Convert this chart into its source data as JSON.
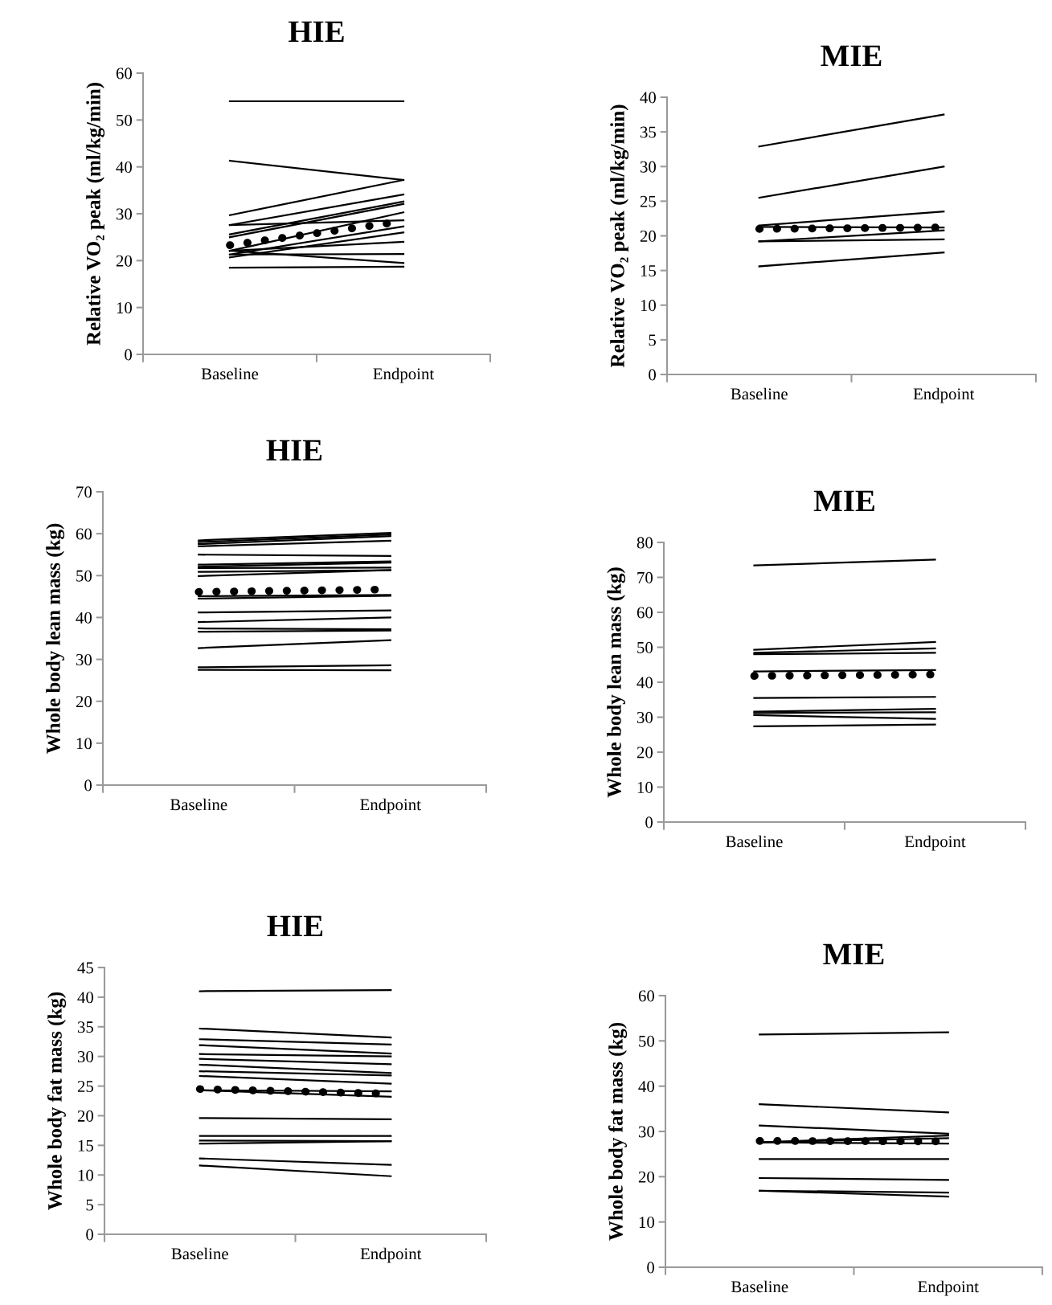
{
  "chart_data": [
    {
      "type": "line",
      "title": "HIE",
      "ylabel": "Relative VO₂ peak (ml/kg/min)",
      "categories": [
        "Baseline",
        "Endpoint"
      ],
      "ylim": [
        0,
        60
      ],
      "yticks": [
        0,
        10,
        20,
        30,
        40,
        50,
        60
      ],
      "series": [
        {
          "color": "#000000",
          "values": [
            54.0,
            54.0
          ]
        },
        {
          "color": "#000000",
          "values": [
            41.3,
            37.2
          ]
        },
        {
          "color": "#000000",
          "values": [
            29.7,
            37.2
          ]
        },
        {
          "color": "#000000",
          "values": [
            27.6,
            34.1
          ]
        },
        {
          "color": "#000000",
          "values": [
            27.6,
            28.6
          ]
        },
        {
          "color": "#000000",
          "values": [
            25.6,
            32.6
          ]
        },
        {
          "color": "#000000",
          "values": [
            25.0,
            32.1
          ]
        },
        {
          "color": "#000000",
          "values": [
            22.1,
            30.3
          ]
        },
        {
          "color": "#000000",
          "values": [
            21.3,
            27.3
          ]
        },
        {
          "color": "#000000",
          "values": [
            20.7,
            26.0
          ]
        },
        {
          "color": "#000000",
          "values": [
            22.1,
            24.0
          ]
        },
        {
          "color": "#000000",
          "values": [
            21.3,
            21.4
          ]
        },
        {
          "color": "#000000",
          "values": [
            22.1,
            19.5
          ]
        },
        {
          "color": "#000000",
          "values": [
            18.5,
            18.7
          ]
        },
        {
          "color": "#000000",
          "line_style": "dotted",
          "values": [
            23.3,
            28.4
          ]
        }
      ]
    },
    {
      "type": "line",
      "title": "MIE",
      "ylabel": "Relative VO₂ peak (ml/kg/min)",
      "categories": [
        "Baseline",
        "Endpoint"
      ],
      "ylim": [
        0,
        40
      ],
      "yticks": [
        0,
        5,
        10,
        15,
        20,
        25,
        30,
        35,
        40
      ],
      "series": [
        {
          "color": "#000000",
          "values": [
            32.9,
            37.5
          ]
        },
        {
          "color": "#000000",
          "values": [
            25.5,
            30.0
          ]
        },
        {
          "color": "#000000",
          "values": [
            21.5,
            23.5
          ]
        },
        {
          "color": "#000000",
          "values": [
            21.3,
            21.2
          ]
        },
        {
          "color": "#000000",
          "values": [
            19.2,
            20.8
          ]
        },
        {
          "color": "#000000",
          "values": [
            19.2,
            19.5
          ]
        },
        {
          "color": "#000000",
          "values": [
            15.6,
            17.6
          ]
        },
        {
          "color": "#000000",
          "line_style": "dotted",
          "values": [
            21.0,
            21.2
          ]
        }
      ]
    },
    {
      "type": "line",
      "title": "HIE",
      "ylabel": "Whole body lean mass (kg)",
      "categories": [
        "Baseline",
        "Endpoint"
      ],
      "ylim": [
        0,
        70
      ],
      "yticks": [
        0,
        10,
        20,
        30,
        40,
        50,
        60,
        70
      ],
      "series": [
        {
          "color": "#000000",
          "values": [
            58.4,
            60.2
          ]
        },
        {
          "color": "#000000",
          "values": [
            58.0,
            59.8
          ]
        },
        {
          "color": "#000000",
          "values": [
            57.5,
            59.4
          ]
        },
        {
          "color": "#000000",
          "values": [
            57.0,
            58.3
          ]
        },
        {
          "color": "#000000",
          "values": [
            55.0,
            54.7
          ]
        },
        {
          "color": "#000000",
          "values": [
            52.6,
            53.4
          ]
        },
        {
          "color": "#000000",
          "values": [
            52.1,
            53.1
          ]
        },
        {
          "color": "#000000",
          "values": [
            51.8,
            51.9
          ]
        },
        {
          "color": "#000000",
          "values": [
            50.9,
            51.3
          ]
        },
        {
          "color": "#000000",
          "values": [
            49.9,
            51.3
          ]
        },
        {
          "color": "#000000",
          "values": [
            45.1,
            45.4
          ]
        },
        {
          "color": "#000000",
          "values": [
            44.5,
            45.2
          ]
        },
        {
          "color": "#000000",
          "values": [
            41.2,
            41.7
          ]
        },
        {
          "color": "#000000",
          "values": [
            38.9,
            40.0
          ]
        },
        {
          "color": "#000000",
          "values": [
            37.4,
            37.2
          ]
        },
        {
          "color": "#000000",
          "values": [
            36.6,
            36.9
          ]
        },
        {
          "color": "#000000",
          "values": [
            32.7,
            34.6
          ]
        },
        {
          "color": "#000000",
          "values": [
            28.1,
            28.6
          ]
        },
        {
          "color": "#000000",
          "values": [
            27.5,
            27.4
          ]
        },
        {
          "color": "#000000",
          "line_style": "dotted",
          "values": [
            46.1,
            46.7
          ]
        }
      ]
    },
    {
      "type": "line",
      "title": "MIE",
      "ylabel": "Whole body lean mass (kg)",
      "categories": [
        "Baseline",
        "Endpoint"
      ],
      "ylim": [
        0,
        80
      ],
      "yticks": [
        0,
        10,
        20,
        30,
        40,
        50,
        60,
        70,
        80
      ],
      "series": [
        {
          "color": "#000000",
          "values": [
            73.4,
            75.1
          ]
        },
        {
          "color": "#000000",
          "values": [
            49.3,
            51.5
          ]
        },
        {
          "color": "#000000",
          "values": [
            48.4,
            49.7
          ]
        },
        {
          "color": "#000000",
          "values": [
            48.0,
            48.4
          ]
        },
        {
          "color": "#000000",
          "values": [
            43.1,
            43.5
          ]
        },
        {
          "color": "#000000",
          "values": [
            35.5,
            35.8
          ]
        },
        {
          "color": "#000000",
          "values": [
            31.6,
            32.4
          ]
        },
        {
          "color": "#000000",
          "values": [
            31.2,
            31.4
          ]
        },
        {
          "color": "#000000",
          "values": [
            30.6,
            29.5
          ]
        },
        {
          "color": "#000000",
          "values": [
            27.4,
            27.9
          ]
        },
        {
          "color": "#000000",
          "line_style": "dotted",
          "values": [
            41.8,
            42.2
          ]
        }
      ]
    },
    {
      "type": "line",
      "title": "HIE",
      "ylabel": "Whole body fat mass (kg)",
      "categories": [
        "Baseline",
        "Endpoint"
      ],
      "ylim": [
        0,
        45
      ],
      "yticks": [
        0,
        5,
        10,
        15,
        20,
        25,
        30,
        35,
        40,
        45
      ],
      "series": [
        {
          "color": "#000000",
          "values": [
            41.0,
            41.2
          ]
        },
        {
          "color": "#000000",
          "values": [
            34.7,
            33.2
          ]
        },
        {
          "color": "#000000",
          "values": [
            32.9,
            32.0
          ]
        },
        {
          "color": "#000000",
          "values": [
            31.9,
            30.5
          ]
        },
        {
          "color": "#000000",
          "values": [
            30.4,
            30.0
          ]
        },
        {
          "color": "#000000",
          "values": [
            29.6,
            28.7
          ]
        },
        {
          "color": "#000000",
          "values": [
            28.6,
            27.2
          ]
        },
        {
          "color": "#000000",
          "values": [
            27.5,
            26.8
          ]
        },
        {
          "color": "#000000",
          "values": [
            26.7,
            25.4
          ]
        },
        {
          "color": "#000000",
          "values": [
            24.3,
            24.1
          ]
        },
        {
          "color": "#000000",
          "values": [
            24.3,
            23.2
          ]
        },
        {
          "color": "#000000",
          "values": [
            19.6,
            19.4
          ]
        },
        {
          "color": "#000000",
          "values": [
            16.6,
            16.6
          ]
        },
        {
          "color": "#000000",
          "values": [
            15.8,
            15.7
          ]
        },
        {
          "color": "#000000",
          "values": [
            15.3,
            15.7
          ]
        },
        {
          "color": "#000000",
          "values": [
            12.8,
            11.7
          ]
        },
        {
          "color": "#000000",
          "values": [
            11.6,
            9.8
          ]
        },
        {
          "color": "#000000",
          "line_style": "dotted",
          "values": [
            24.5,
            23.7
          ]
        }
      ]
    },
    {
      "type": "line",
      "title": "MIE",
      "ylabel": "Whole body fat mass (kg)",
      "categories": [
        "Baseline",
        "Endpoint"
      ],
      "ylim": [
        0,
        60
      ],
      "yticks": [
        0,
        10,
        20,
        30,
        40,
        50,
        60
      ],
      "series": [
        {
          "color": "#000000",
          "values": [
            51.4,
            51.9
          ]
        },
        {
          "color": "#000000",
          "values": [
            36.0,
            34.2
          ]
        },
        {
          "color": "#000000",
          "values": [
            31.3,
            29.5
          ]
        },
        {
          "color": "#000000",
          "values": [
            27.6,
            29.1
          ]
        },
        {
          "color": "#000000",
          "values": [
            27.6,
            28.5
          ]
        },
        {
          "color": "#000000",
          "values": [
            27.6,
            27.3
          ]
        },
        {
          "color": "#000000",
          "values": [
            23.9,
            23.9
          ]
        },
        {
          "color": "#000000",
          "values": [
            19.7,
            19.3
          ]
        },
        {
          "color": "#000000",
          "values": [
            16.9,
            16.5
          ]
        },
        {
          "color": "#000000",
          "values": [
            16.9,
            15.6
          ]
        },
        {
          "color": "#000000",
          "line_style": "dotted",
          "values": [
            27.9,
            27.8
          ]
        }
      ]
    }
  ]
}
